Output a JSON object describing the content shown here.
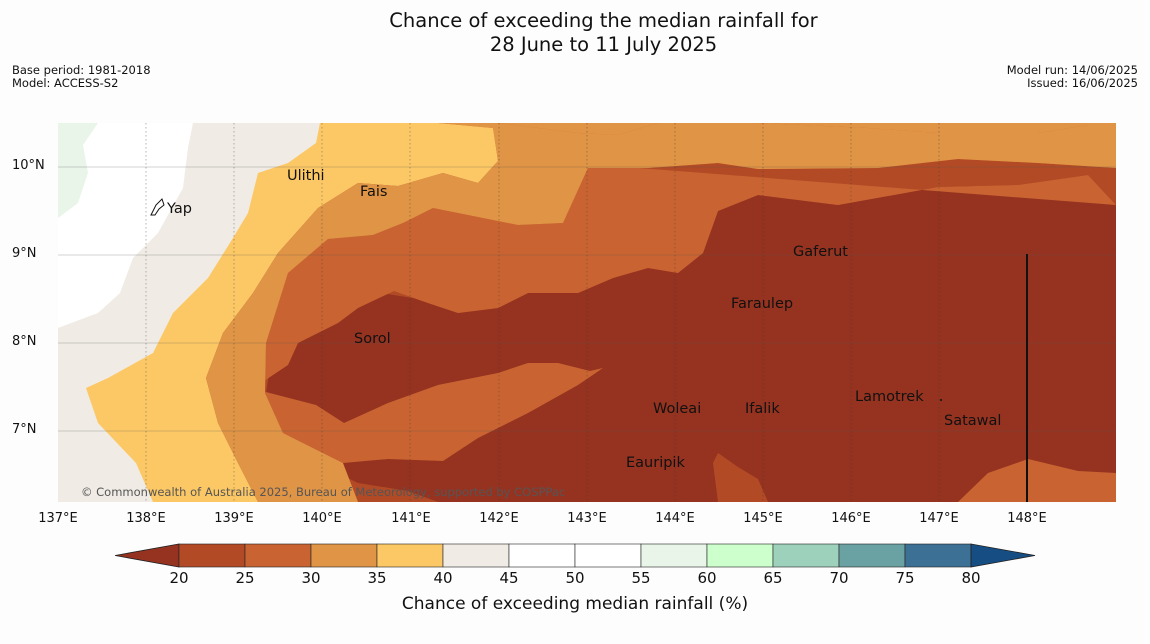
{
  "title_line1": "Chance of exceeding the median rainfall for",
  "title_line2": "28 June to 11 July 2025",
  "meta_left": [
    "Base period: 1981-2018",
    "Model: ACCESS-S2"
  ],
  "meta_right": [
    "Model run: 14/06/2025",
    "Issued: 16/06/2025"
  ],
  "credit": "© Commonwealth of Australia 2025, Bureau of Meteorology, supported by COSPPac",
  "chart_data": {
    "type": "heatmap",
    "title": "Chance of exceeding the median rainfall for 28 June to 11 July 2025",
    "x_ticks": [
      "137°E",
      "138°E",
      "139°E",
      "140°E",
      "141°E",
      "142°E",
      "143°E",
      "144°E",
      "145°E",
      "146°E",
      "147°E",
      "148°E"
    ],
    "y_ticks": [
      "10°N",
      "9°N",
      "8°N",
      "7°N"
    ],
    "xlim": [
      137,
      149
    ],
    "ylim": [
      6.2,
      10.5
    ],
    "places": [
      {
        "name": "Yap",
        "lon": 138.2,
        "lat": 9.5
      },
      {
        "name": "Ulithi",
        "lon": 139.7,
        "lat": 9.9
      },
      {
        "name": "Fais",
        "lon": 140.4,
        "lat": 9.75
      },
      {
        "name": "Gaferut",
        "lon": 145.35,
        "lat": 9.05
      },
      {
        "name": "Faraulep",
        "lon": 144.6,
        "lat": 8.45
      },
      {
        "name": "Sorol",
        "lon": 140.4,
        "lat": 8.05
      },
      {
        "name": "Lamotrek",
        "lon": 146.0,
        "lat": 7.4
      },
      {
        "name": "Satawal",
        "lon": 147.0,
        "lat": 7.15
      },
      {
        "name": "Woleai",
        "lon": 143.8,
        "lat": 7.3
      },
      {
        "name": "Ifalik",
        "lon": 144.5,
        "lat": 7.3
      },
      {
        "name": "Eauripik",
        "lon": 143.4,
        "lat": 6.65
      }
    ],
    "colorbar": {
      "label": "Chance of exceeding median rainfall (%)",
      "ticks": [
        "20",
        "25",
        "30",
        "35",
        "40",
        "45",
        "50",
        "55",
        "60",
        "65",
        "70",
        "75",
        "80"
      ],
      "colors": [
        "#963320",
        "#b24b25",
        "#c96432",
        "#e09445",
        "#fcc865",
        "#f0ebe4",
        "#ffffff",
        "#ffffff",
        "#e9f5e9",
        "#ccffcc",
        "#9ed1bb",
        "#6aa1a3",
        "#3c7094",
        "#164d83"
      ]
    }
  }
}
